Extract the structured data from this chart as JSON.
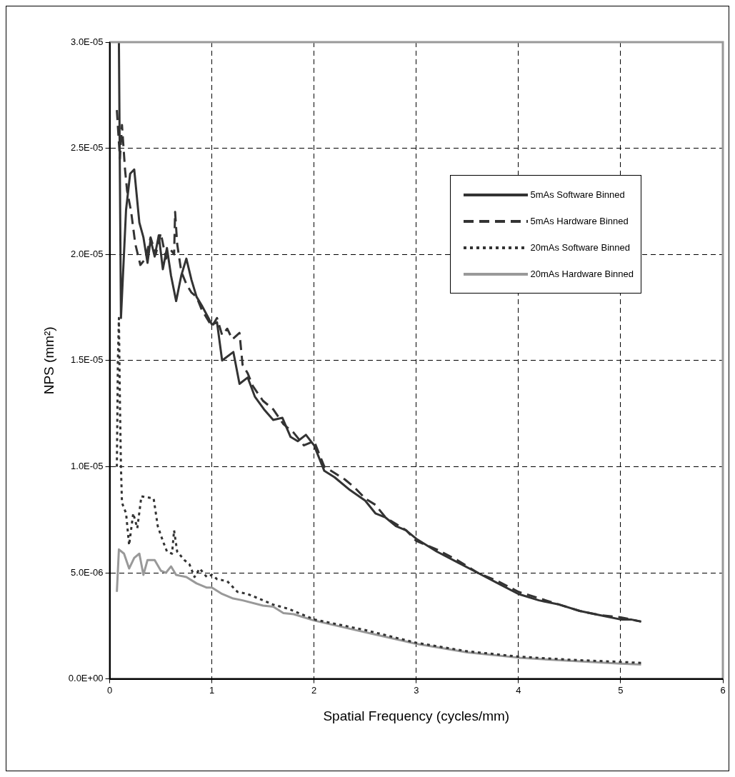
{
  "chart_data": {
    "type": "line",
    "xlabel": "Spatial Frequency (cycles/mm)",
    "ylabel": "NPS (mm²)",
    "xlim": [
      0,
      6
    ],
    "xticks": [
      0,
      1,
      2,
      3,
      4,
      5,
      6
    ],
    "ylim": [
      0,
      3e-05
    ],
    "yticks": [
      {
        "value": 0,
        "label": "0.0E+00"
      },
      {
        "value": 5e-06,
        "label": "5.0E-06"
      },
      {
        "value": 1e-05,
        "label": "1.0E-05"
      },
      {
        "value": 1.5e-05,
        "label": "1.5E-05"
      },
      {
        "value": 2e-05,
        "label": "2.0E-05"
      },
      {
        "value": 2.5e-05,
        "label": "2.5E-05"
      },
      {
        "value": 3e-05,
        "label": "3.0E-05"
      }
    ],
    "grid": true,
    "legend": "top right",
    "marker": "none",
    "series": [
      {
        "name": "5mAs Software Binned",
        "color": "#333333",
        "line_style": "solid",
        "x": [
          0.09,
          0.11,
          0.16,
          0.2,
          0.24,
          0.29,
          0.33,
          0.37,
          0.4,
          0.44,
          0.48,
          0.52,
          0.56,
          0.6,
          0.65,
          0.7,
          0.75,
          0.8,
          0.85,
          0.9,
          1.0,
          1.05,
          1.1,
          1.21,
          1.27,
          1.35,
          1.42,
          1.51,
          1.6,
          1.69,
          1.77,
          1.84,
          1.92,
          2.0,
          2.1,
          2.2,
          2.35,
          2.5,
          2.6,
          2.7,
          2.8,
          2.9,
          3.0,
          3.2,
          3.4,
          3.6,
          3.8,
          4.0,
          4.2,
          4.4,
          4.6,
          4.8,
          5.0,
          5.1,
          5.2
        ],
        "values": [
          3e-05,
          1.7e-05,
          2.21e-05,
          2.38e-05,
          2.4e-05,
          2.15e-05,
          2.08e-05,
          1.96e-05,
          2.07e-05,
          1.99e-05,
          2.09e-05,
          1.93e-05,
          2.03e-05,
          1.9e-05,
          1.78e-05,
          1.9e-05,
          1.98e-05,
          1.88e-05,
          1.8e-05,
          1.76e-05,
          1.67e-05,
          1.68e-05,
          1.5e-05,
          1.54e-05,
          1.39e-05,
          1.42e-05,
          1.33e-05,
          1.27e-05,
          1.22e-05,
          1.23e-05,
          1.14e-05,
          1.12e-05,
          1.15e-05,
          1.1e-05,
          9.8e-06,
          9.5e-06,
          8.9e-06,
          8.4e-06,
          7.8e-06,
          7.6e-06,
          7.2e-06,
          7e-06,
          6.6e-06,
          6e-06,
          5.5e-06,
          5e-06,
          4.5e-06,
          4e-06,
          3.7e-06,
          3.5e-06,
          3.2e-06,
          3e-06,
          2.8e-06,
          2.8e-06,
          2.7e-06
        ]
      },
      {
        "name": "5mAs Hardware Binned",
        "color": "#333333",
        "line_style": "dashed",
        "x": [
          0.07,
          0.1,
          0.12,
          0.15,
          0.17,
          0.21,
          0.25,
          0.3,
          0.35,
          0.4,
          0.45,
          0.5,
          0.55,
          0.6,
          0.63,
          0.64,
          0.66,
          0.7,
          0.75,
          0.8,
          0.85,
          0.9,
          0.95,
          1.0,
          1.05,
          1.1,
          1.15,
          1.2,
          1.27,
          1.3,
          1.35,
          1.4,
          1.5,
          1.6,
          1.7,
          1.8,
          1.9,
          2.0,
          2.1,
          2.2,
          2.3,
          2.4,
          2.5,
          2.6,
          2.7,
          2.8,
          2.9,
          3.0,
          3.2,
          3.4,
          3.6,
          3.8,
          4.0,
          4.2,
          4.4,
          4.6,
          4.8,
          5.0,
          5.1,
          5.2
        ],
        "values": [
          2.68e-05,
          2.45e-05,
          2.61e-05,
          2.4e-05,
          2.3e-05,
          2.2e-05,
          2.05e-05,
          1.95e-05,
          1.98e-05,
          2.08e-05,
          2e-05,
          2.1e-05,
          1.98e-05,
          2.02e-05,
          2e-05,
          2.2e-05,
          2.05e-05,
          1.92e-05,
          1.86e-05,
          1.82e-05,
          1.8e-05,
          1.74e-05,
          1.7e-05,
          1.66e-05,
          1.7e-05,
          1.62e-05,
          1.65e-05,
          1.6e-05,
          1.63e-05,
          1.48e-05,
          1.44e-05,
          1.38e-05,
          1.31e-05,
          1.27e-05,
          1.2e-05,
          1.16e-05,
          1.1e-05,
          1.12e-05,
          1e-05,
          9.7e-06,
          9.4e-06,
          9e-06,
          8.5e-06,
          8.2e-06,
          7.6e-06,
          7.3e-06,
          7e-06,
          6.5e-06,
          6.1e-06,
          5.6e-06,
          5e-06,
          4.6e-06,
          4.1e-06,
          3.8e-06,
          3.5e-06,
          3.2e-06,
          3e-06,
          2.9e-06,
          2.8e-06,
          2.7e-06
        ]
      },
      {
        "name": "20mAs Software Binned",
        "color": "#333333",
        "line_style": "dotted",
        "x": [
          0.07,
          0.08,
          0.09,
          0.1,
          0.11,
          0.12,
          0.16,
          0.19,
          0.23,
          0.27,
          0.31,
          0.43,
          0.47,
          0.52,
          0.56,
          0.61,
          0.63,
          0.66,
          0.73,
          0.78,
          0.83,
          0.88,
          0.95,
          1.0,
          1.05,
          1.15,
          1.25,
          1.35,
          1.5,
          1.6,
          1.75,
          1.9,
          2.0,
          2.5,
          3.0,
          3.5,
          4.0,
          4.5,
          5.0,
          5.2
        ],
        "values": [
          1e-05,
          1.5e-05,
          1.7e-05,
          1.3e-05,
          1e-05,
          8.3e-06,
          7.8e-06,
          6.3e-06,
          7.8e-06,
          7.1e-06,
          8.6e-06,
          8.5e-06,
          7.2e-06,
          6.5e-06,
          6e-06,
          5.9e-06,
          7e-06,
          6e-06,
          5.6e-06,
          5.4e-06,
          4.8e-06,
          5.2e-06,
          4.8e-06,
          4.9e-06,
          4.7e-06,
          4.6e-06,
          4.1e-06,
          4e-06,
          3.7e-06,
          3.5e-06,
          3.3e-06,
          3e-06,
          2.8e-06,
          2.3e-06,
          1.7e-06,
          1.3e-06,
          1.05e-06,
          9e-07,
          8e-07,
          7.5e-07
        ]
      },
      {
        "name": "20mAs Hardware Binned",
        "color": "#999999",
        "line_style": "solid",
        "x": [
          0.07,
          0.09,
          0.14,
          0.19,
          0.24,
          0.29,
          0.33,
          0.37,
          0.44,
          0.5,
          0.55,
          0.6,
          0.65,
          0.75,
          0.85,
          0.95,
          1.0,
          1.1,
          1.2,
          1.3,
          1.5,
          1.6,
          1.7,
          1.8,
          2.0,
          2.5,
          3.0,
          3.5,
          4.0,
          4.5,
          5.0,
          5.2
        ],
        "values": [
          4.1e-06,
          6.1e-06,
          5.9e-06,
          5.2e-06,
          5.7e-06,
          5.9e-06,
          4.9e-06,
          5.6e-06,
          5.6e-06,
          5.1e-06,
          5e-06,
          5.3e-06,
          4.9e-06,
          4.8e-06,
          4.5e-06,
          4.3e-06,
          4.3e-06,
          4e-06,
          3.8e-06,
          3.7e-06,
          3.45e-06,
          3.4e-06,
          3.1e-06,
          3.05e-06,
          2.75e-06,
          2.2e-06,
          1.65e-06,
          1.25e-06,
          1e-06,
          8.5e-07,
          7.2e-07,
          6.8e-07
        ]
      }
    ]
  }
}
